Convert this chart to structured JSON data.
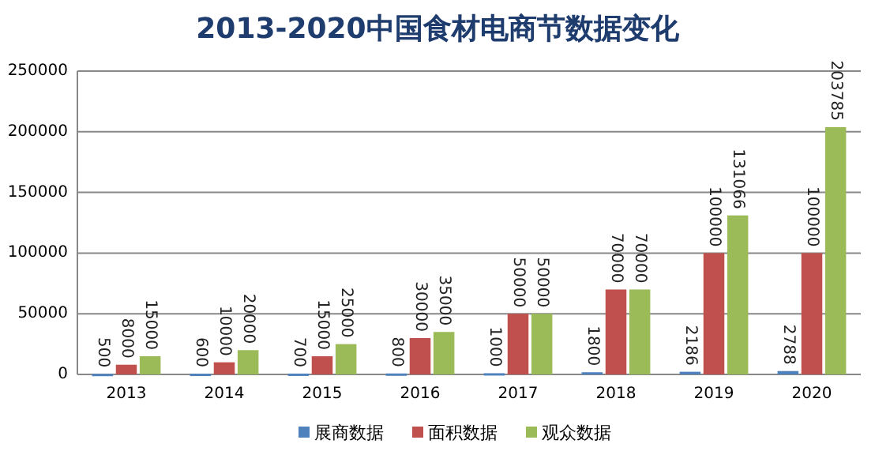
{
  "chart_data": {
    "type": "bar",
    "title": "2013-2020中国食材电商节数据变化",
    "categories": [
      "2013",
      "2014",
      "2015",
      "2016",
      "2017",
      "2018",
      "2019",
      "2020"
    ],
    "series": [
      {
        "name": "展商数据",
        "color": "#4f81bd",
        "values": [
          500,
          600,
          700,
          800,
          1000,
          1800,
          2186,
          2788
        ]
      },
      {
        "name": "面积数据",
        "color": "#c0504d",
        "values": [
          8000,
          10000,
          15000,
          30000,
          50000,
          70000,
          100000,
          100000
        ]
      },
      {
        "name": "观众数据",
        "color": "#9bbb59",
        "values": [
          15000,
          20000,
          25000,
          35000,
          50000,
          70000,
          131066,
          203785
        ]
      }
    ],
    "ylim": [
      0,
      250000
    ],
    "yticks": [
      0,
      50000,
      100000,
      150000,
      200000,
      250000
    ],
    "grid": "y",
    "legend": "bottom",
    "data_labels": true
  }
}
